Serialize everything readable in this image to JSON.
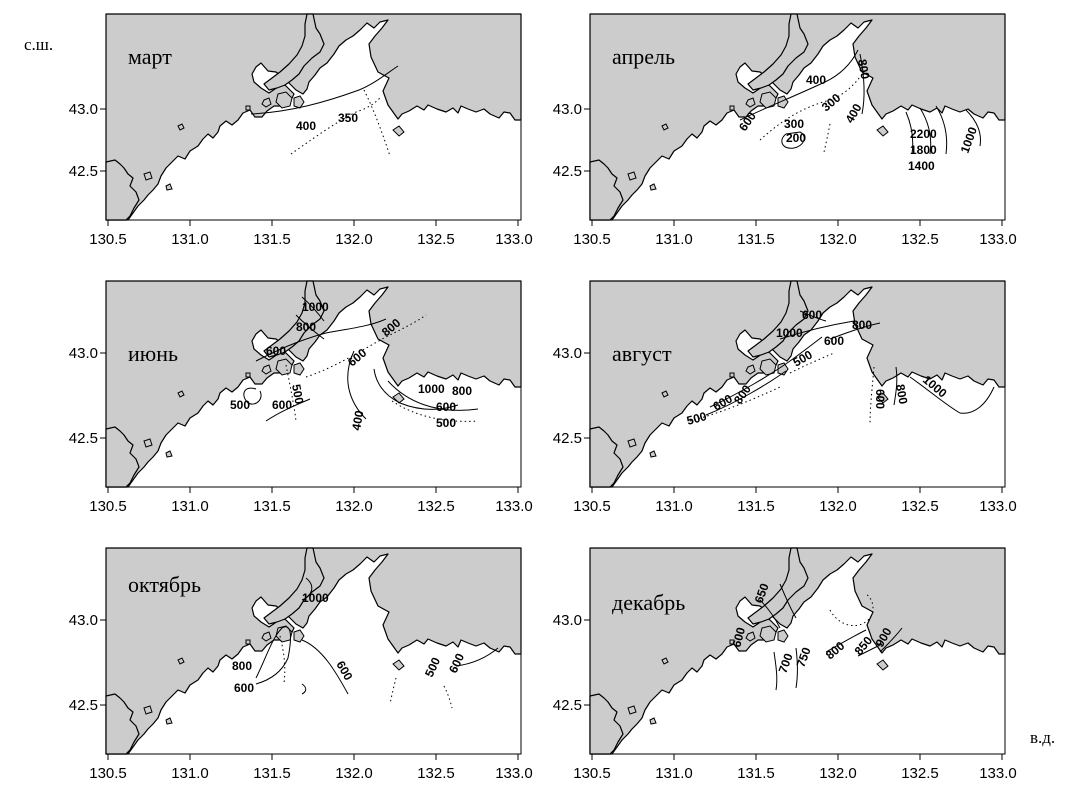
{
  "axis_units": {
    "lat": "с.ш.",
    "lon": "в.д."
  },
  "x_ticks": [
    "130.5",
    "131.0",
    "131.5",
    "132.0",
    "132.5",
    "133.0"
  ],
  "y_ticks": [
    "43.0",
    "42.5"
  ],
  "panels": [
    {
      "month": "март",
      "contour_labels": [
        "400",
        "350"
      ]
    },
    {
      "month": "апрель",
      "contour_labels": [
        "600",
        "400",
        "300",
        "200",
        "300",
        "400",
        "800",
        "2200",
        "1800",
        "1400",
        "1000"
      ]
    },
    {
      "month": "июнь",
      "contour_labels": [
        "1000",
        "800",
        "600",
        "500",
        "500",
        "600",
        "800",
        "600",
        "400",
        "1000",
        "800",
        "600",
        "500"
      ]
    },
    {
      "month": "август",
      "contour_labels": [
        "600",
        "1000",
        "800",
        "600",
        "800",
        "500",
        "600",
        "500",
        "600",
        "800",
        "1000"
      ]
    },
    {
      "month": "октябрь",
      "contour_labels": [
        "1000",
        "800",
        "600",
        "600",
        "500",
        "600"
      ]
    },
    {
      "month": "декабрь",
      "contour_labels": [
        "650",
        "600",
        "700",
        "750",
        "800",
        "850",
        "900"
      ]
    }
  ]
}
